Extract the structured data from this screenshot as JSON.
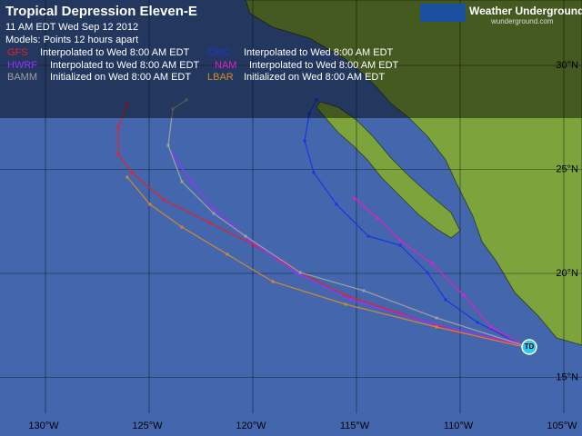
{
  "header": {
    "title": "Tropical Depression Eleven-E",
    "issued": "11 AM EDT Wed Sep 12 2012",
    "models_note": "Models:  Points 12 hours apart"
  },
  "models": [
    {
      "name": "GFS",
      "color": "#e8202a",
      "label": "Interpolated to Wed 8:00 AM EDT"
    },
    {
      "name": "CMC",
      "color": "#1a35e0",
      "label": "Interpolated to Wed 8:00 AM EDT"
    },
    {
      "name": "HWRF",
      "color": "#9a30ff",
      "label": "Interpolated to Wed 8:00 AM EDT"
    },
    {
      "name": "NAM",
      "color": "#e020c8",
      "label": "Interpolated to Wed 8:00 AM EDT"
    },
    {
      "name": "BAMM",
      "color": "#a0a0a0",
      "label": "Initialized on Wed 8:00 AM EDT"
    },
    {
      "name": "LBAR",
      "color": "#d08a30",
      "label": "Initialized on Wed 8:00 AM EDT"
    }
  ],
  "logo": {
    "name": "Weather Underground",
    "url": "wunderground.com"
  },
  "map": {
    "lon_labels": [
      "130°W",
      "125°W",
      "120°W",
      "115°W",
      "110°W",
      "105°W"
    ],
    "lat_labels": [
      "30°N",
      "25°N",
      "20°N",
      "15°N"
    ],
    "storm_label": "TD"
  }
}
